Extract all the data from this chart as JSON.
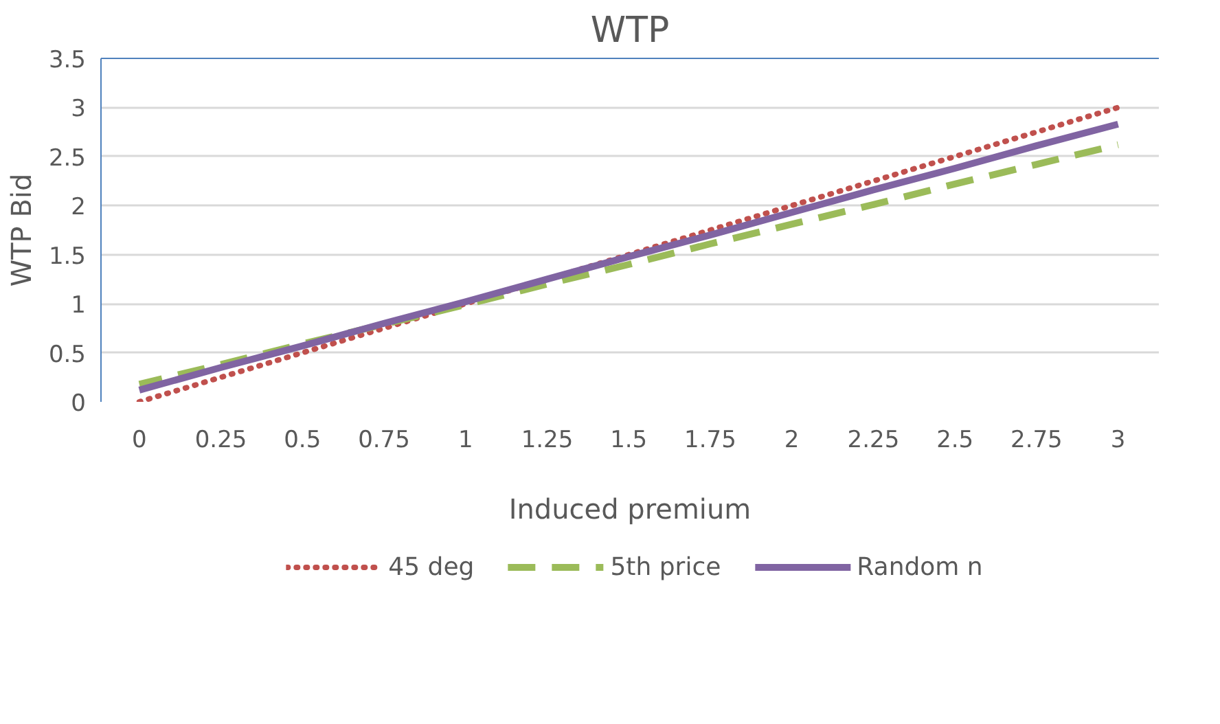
{
  "chart_data": {
    "type": "line",
    "title": "WTP",
    "xlabel": "Induced premium",
    "ylabel": "WTP Bid",
    "categories": [
      "0",
      "0.25",
      "0.5",
      "0.75",
      "1",
      "1.25",
      "1.5",
      "1.75",
      "2",
      "2.25",
      "2.5",
      "2.75",
      "3"
    ],
    "series": [
      {
        "name": "45 deg",
        "color": "#c0504d",
        "line_style": "dotted",
        "values": [
          0,
          0.25,
          0.5,
          0.75,
          1,
          1.25,
          1.5,
          1.75,
          2,
          2.25,
          2.5,
          2.75,
          3
        ]
      },
      {
        "name": "5th price",
        "color": "#9bbb59",
        "line_style": "dashed",
        "values": [
          0.18,
          0.38,
          0.59,
          0.79,
          0.99,
          1.2,
          1.4,
          1.61,
          1.81,
          2.01,
          2.22,
          2.42,
          2.62
        ]
      },
      {
        "name": "Random n",
        "color": "#8064a2",
        "line_style": "solid",
        "values": [
          0.12,
          0.35,
          0.57,
          0.8,
          1.02,
          1.25,
          1.48,
          1.7,
          1.93,
          2.16,
          2.38,
          2.61,
          2.83
        ]
      }
    ],
    "ylim": [
      0,
      3.5
    ],
    "yticks": [
      0,
      0.5,
      1,
      1.5,
      2,
      2.5,
      3,
      3.5
    ],
    "grid": "y",
    "legend": "bottom",
    "marker": "none"
  }
}
